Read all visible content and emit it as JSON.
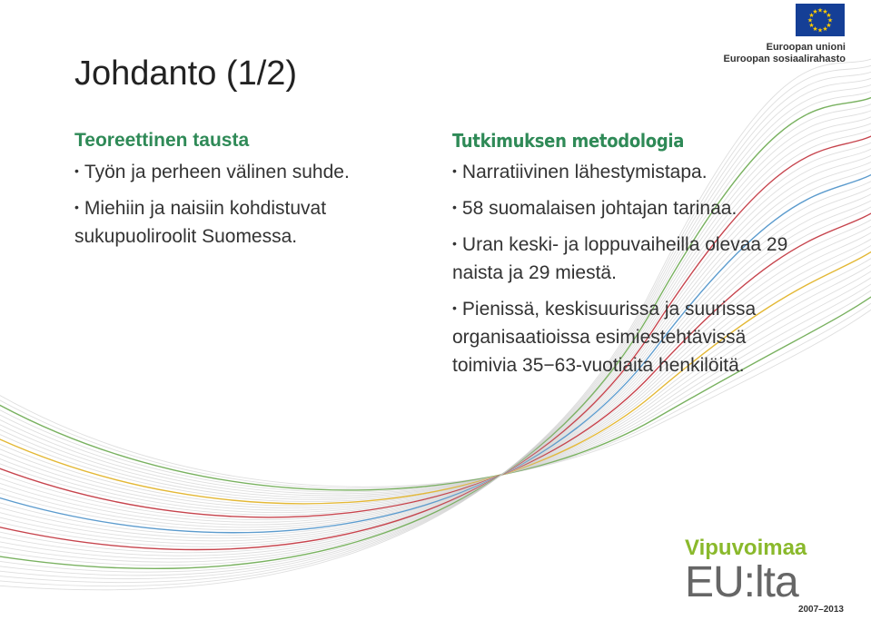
{
  "slide": {
    "title": "Johdanto (1/2)"
  },
  "left_column": {
    "heading": "Teoreettinen tausta",
    "bullets": [
      "Työn ja perheen välinen suhde.",
      "Miehiin ja naisiin kohdistuvat sukupuoliroolit Suomessa."
    ]
  },
  "right_column": {
    "heading": "Tutkimuksen metodologia",
    "bullets": [
      "Narratiivinen lähestymistapa.",
      "58 suomalaisen johtajan tarinaa.",
      "Uran keski- ja loppuvaiheilla olevaa 29 naista ja 29 miestä.",
      "Pienissä, keskisuurissa ja suurissa organisaatioissa esimiestehtävissä toimivia 35−63-vuotiaita henkilöitä."
    ]
  },
  "eu_logo": {
    "line1": "Euroopan unioni",
    "line2": "Euroopan sosiaalirahasto",
    "flag_color": "#153f96",
    "star_color": "#ffcc00"
  },
  "program_logo": {
    "top": "Vipuvoimaa",
    "main": "EU:lta",
    "years": "2007–2013",
    "green": "#8ab92c"
  },
  "colors": {
    "heading_green": "#2f8a57",
    "wave_red": "#c0303a",
    "wave_green": "#6aa84f",
    "wave_yellow": "#e0b020",
    "wave_blue": "#4a90c8",
    "wave_grey": "#c8c8c8"
  }
}
